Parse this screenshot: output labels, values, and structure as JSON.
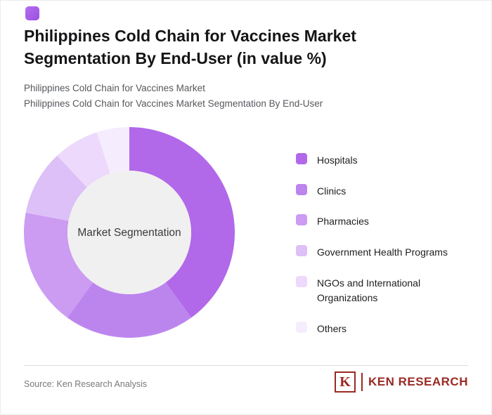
{
  "page": {
    "title_line1": "Philippines Cold Chain for Vaccines Market",
    "title_line2": "Segmentation By End-User (in value %)",
    "subtitle_line1": "Philippines Cold Chain for Vaccines Market",
    "subtitle_line2": "Philippines Cold Chain for Vaccines Market Segmentation By End-User"
  },
  "chart_data": {
    "type": "pie",
    "donut": true,
    "title": "Philippines Cold Chain for Vaccines Market Segmentation By End-User (in value %)",
    "center_label": "Market Segmentation",
    "legend_position": "right",
    "categories": [
      "Hospitals",
      "Clinics",
      "Pharmacies",
      "Government Health Programs",
      "NGOs and International Organizations",
      "Others"
    ],
    "values": [
      40,
      20,
      18,
      10,
      7,
      5
    ],
    "colors": [
      "#b168e9",
      "#bc85ee",
      "#cb9cf2",
      "#ddc0f7",
      "#ecd9fb",
      "#f5ecfd"
    ],
    "hole_color": "#f0f0f0"
  },
  "footer": {
    "source": "Source: Ken Research Analysis",
    "logo_letter": "K",
    "logo_text": "KEN RESEARCH"
  },
  "colors": {
    "accent": "#a55ce8",
    "logo_red": "#9a2a23"
  }
}
